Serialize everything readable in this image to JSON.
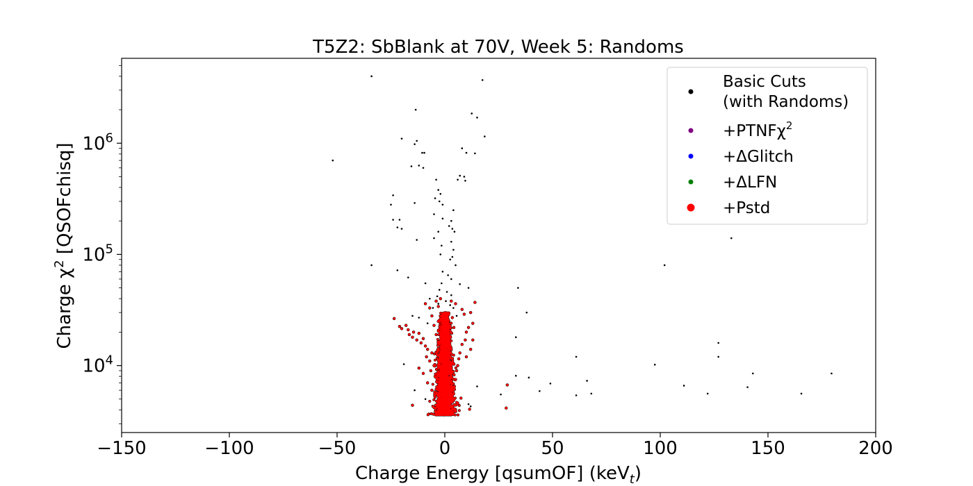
{
  "chart_data": {
    "type": "scatter",
    "title": "T5Z2: SbBlank at 70V, Week 5: Randoms",
    "xlabel": "Charge Energy [qsumOF] (keV",
    "xlabel_sub": "t",
    "xlabel_end": ")",
    "ylabel": "Charge χ",
    "ylabel_sup": "2",
    "ylabel_end": " [QSOFchisq]",
    "xlim": [
      -150,
      200
    ],
    "ylim": [
      2500,
      5800000
    ],
    "yscale": "log",
    "xticks": [
      -150,
      -100,
      -50,
      0,
      50,
      100,
      150,
      200
    ],
    "xtick_labels": [
      "−150",
      "−100",
      "−50",
      "0",
      "50",
      "100",
      "150",
      "200"
    ],
    "yticks": [
      10000,
      100000,
      1000000
    ],
    "ytick_bases": [
      "10",
      "10",
      "10"
    ],
    "ytick_exps": [
      "4",
      "5",
      "6"
    ],
    "grid": false,
    "legend_position": "top-right",
    "legend": [
      {
        "label": "Basic Cuts",
        "label2": "(with Randoms)",
        "color": "#000000"
      },
      {
        "label": "+PTNFχ",
        "sup": "2",
        "color": "#800080"
      },
      {
        "label": "+ΔGlitch",
        "color": "#0000ff"
      },
      {
        "label": "+ΔLFN",
        "color": "#008000"
      },
      {
        "label": "+Pstd",
        "color": "#ff0000"
      }
    ],
    "series": [
      {
        "name": "Basic Cuts (with Randoms)",
        "color": "#000000",
        "points": [
          [
            -34,
            4000000
          ],
          [
            17.5,
            3700000
          ],
          [
            -13.5,
            2000000
          ],
          [
            12.5,
            1850000
          ],
          [
            15,
            1700000
          ],
          [
            18.5,
            1150000
          ],
          [
            -20,
            1100000
          ],
          [
            -13,
            1050000
          ],
          [
            -14,
            980000
          ],
          [
            14,
            810000
          ],
          [
            8,
            900000
          ],
          [
            10,
            820000
          ],
          [
            -10.5,
            820000
          ],
          [
            -9.5,
            820000
          ],
          [
            -52,
            700000
          ],
          [
            -15.5,
            620000
          ],
          [
            -12,
            630000
          ],
          [
            -10,
            600000
          ],
          [
            9,
            500000
          ],
          [
            7,
            510000
          ],
          [
            6,
            470000
          ],
          [
            9.5,
            460000
          ],
          [
            -4,
            470000
          ],
          [
            -24,
            340000
          ],
          [
            -3,
            380000
          ],
          [
            -2,
            350000
          ],
          [
            -4.5,
            320000
          ],
          [
            -2.5,
            300000
          ],
          [
            -14,
            290000
          ],
          [
            -1,
            280000
          ],
          [
            -25,
            280000
          ],
          [
            4,
            250000
          ],
          [
            -5,
            230000
          ],
          [
            -24,
            205000
          ],
          [
            -21,
            205000
          ],
          [
            -1,
            210000
          ],
          [
            3,
            200000
          ],
          [
            -22,
            175000
          ],
          [
            -20,
            170000
          ],
          [
            2,
            180000
          ],
          [
            3.5,
            170000
          ],
          [
            4.5,
            160000
          ],
          [
            -3,
            160000
          ],
          [
            -5,
            140000
          ],
          [
            -13,
            135000
          ],
          [
            3,
            130000
          ],
          [
            -1.5,
            120000
          ],
          [
            4,
            110000
          ],
          [
            -2,
            100000
          ],
          [
            3.5,
            95000
          ],
          [
            2.5,
            90000
          ],
          [
            -34,
            80000
          ],
          [
            133,
            140000
          ],
          [
            102,
            80000
          ],
          [
            -22,
            72000
          ],
          [
            5,
            80000
          ],
          [
            -1,
            70000
          ],
          [
            1.5,
            65000
          ],
          [
            -17,
            62000
          ],
          [
            3,
            60000
          ],
          [
            -1.5,
            55000
          ],
          [
            -9,
            55000
          ],
          [
            7,
            54000
          ],
          [
            11,
            50000
          ],
          [
            34,
            50000
          ],
          [
            -2.5,
            48000
          ],
          [
            1,
            46000
          ],
          [
            3,
            43000
          ],
          [
            -3.5,
            42000
          ],
          [
            -7,
            40000
          ],
          [
            0.5,
            38000
          ],
          [
            -3,
            36000
          ],
          [
            2.5,
            35000
          ],
          [
            -5.5,
            33000
          ],
          [
            4,
            33000
          ],
          [
            38,
            30000
          ],
          [
            -15,
            28000
          ],
          [
            -12,
            27000
          ],
          [
            5.5,
            28000
          ],
          [
            -8,
            24000
          ],
          [
            33,
            18000
          ],
          [
            127,
            16000
          ],
          [
            61,
            12000
          ],
          [
            127,
            12000
          ],
          [
            97.5,
            10200
          ],
          [
            -19,
            10300
          ],
          [
            143,
            8500
          ],
          [
            179.5,
            8500
          ],
          [
            33,
            8100
          ],
          [
            39,
            7800
          ],
          [
            66,
            7300
          ],
          [
            49,
            6900
          ],
          [
            111,
            6600
          ],
          [
            140.5,
            6400
          ],
          [
            15,
            6500
          ],
          [
            26,
            5500
          ],
          [
            44,
            5900
          ],
          [
            61,
            5400
          ],
          [
            68,
            5600
          ],
          [
            122,
            5600
          ],
          [
            165.5,
            5600
          ],
          [
            12,
            4300
          ],
          [
            -14,
            6000
          ],
          [
            -9,
            5000
          ],
          [
            11,
            4500
          ]
        ]
      },
      {
        "name": "+Pstd",
        "color": "#ff0000",
        "points": [
          [
            -23.5,
            26500
          ],
          [
            -21,
            22500
          ],
          [
            -20,
            21500
          ],
          [
            -18,
            23000
          ],
          [
            -17,
            21000
          ],
          [
            -16.5,
            19000
          ],
          [
            -15,
            18000
          ],
          [
            -14.5,
            20000
          ],
          [
            -13,
            17000
          ],
          [
            -12,
            19500
          ],
          [
            -11,
            16000
          ],
          [
            -10,
            17500
          ],
          [
            -9,
            15000
          ],
          [
            -8,
            14000
          ],
          [
            -8.5,
            12000
          ],
          [
            -7,
            11000
          ],
          [
            -6,
            13000
          ],
          [
            -6.5,
            9000
          ],
          [
            -5,
            10000
          ],
          [
            -4.5,
            8000
          ],
          [
            -9,
            36000
          ],
          [
            -7,
            33000
          ],
          [
            -6,
            28000
          ],
          [
            -4,
            38000
          ],
          [
            -3,
            34000
          ],
          [
            -2,
            40000
          ],
          [
            3,
            38000
          ],
          [
            5,
            36000
          ],
          [
            8,
            32000
          ],
          [
            9,
            29000
          ],
          [
            14,
            37000
          ],
          [
            12,
            30000
          ],
          [
            13,
            24000
          ],
          [
            11,
            22000
          ],
          [
            10,
            20000
          ],
          [
            9.5,
            17000
          ],
          [
            8,
            15500
          ],
          [
            7,
            13000
          ],
          [
            6.5,
            11500
          ],
          [
            6,
            10000
          ],
          [
            5.5,
            9000
          ],
          [
            5,
            7500
          ],
          [
            4.5,
            6500
          ],
          [
            13,
            17000
          ],
          [
            12,
            14000
          ],
          [
            10,
            12000
          ],
          [
            -12,
            9500
          ],
          [
            -10,
            8500
          ],
          [
            -8,
            7000
          ],
          [
            -6,
            6000
          ],
          [
            -4.5,
            5200
          ],
          [
            -15,
            4400
          ],
          [
            -5,
            4200
          ],
          [
            4,
            4100
          ],
          [
            6,
            4600
          ],
          [
            7.5,
            5100
          ],
          [
            11.5,
            4050
          ],
          [
            28.5,
            4150
          ],
          [
            29,
            6700
          ],
          [
            -4,
            19000
          ],
          [
            -3,
            25000
          ],
          [
            3.5,
            27000
          ],
          [
            4.2,
            22000
          ],
          [
            -5,
            23000
          ],
          [
            2.5,
            12000
          ],
          [
            -2.5,
            11000
          ]
        ]
      }
    ],
    "core_cloud": {
      "series": "+Pstd",
      "color": "#ff0000",
      "center_x": 0,
      "x_sigma": 1.5,
      "y_min": 3600,
      "y_max": 30000
    }
  }
}
